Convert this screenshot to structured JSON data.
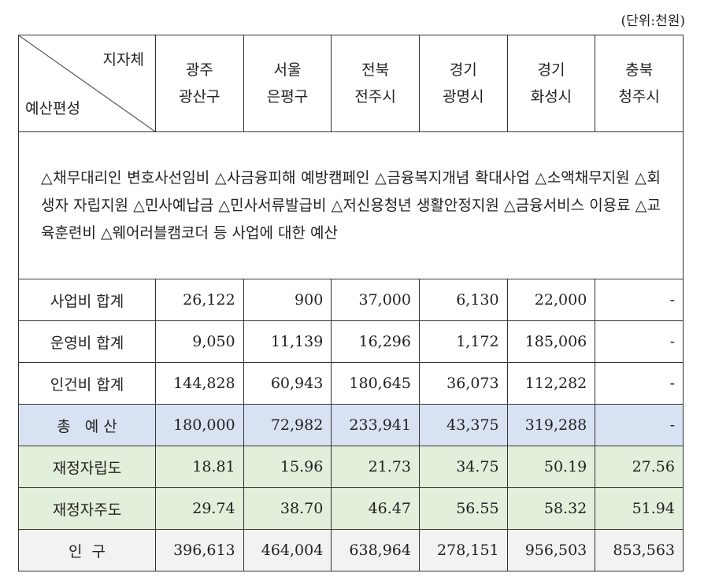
{
  "unit": "(단위:천원)",
  "corner": {
    "top": "지자체",
    "bottom": "예산편성"
  },
  "columns": [
    {
      "line1": "광주",
      "line2": "광산구"
    },
    {
      "line1": "서울",
      "line2": "은평구"
    },
    {
      "line1": "전북",
      "line2": "전주시"
    },
    {
      "line1": "경기",
      "line2": "광명시"
    },
    {
      "line1": "경기",
      "line2": "화성시"
    },
    {
      "line1": "충북",
      "line2": "청주시"
    }
  ],
  "description": "△채무대리인 변호사선임비 △사금융피해 예방캠페인 △금융복지개념 확대사업 △소액채무지원 △회생자 자립지원 △민사예납금 △민사서류발급비 △저신용청년 생활안정지원 △금융서비스 이용료 △교육훈련비 △웨어러블캠코더 등 사업에 대한 예산",
  "rows": [
    {
      "label": "사업비 합계",
      "values": [
        "26,122",
        "900",
        "37,000",
        "6,130",
        "22,000",
        "-"
      ]
    },
    {
      "label": "운영비 합계",
      "values": [
        "9,050",
        "11,139",
        "16,296",
        "1,172",
        "185,006",
        "-"
      ]
    },
    {
      "label": "인건비 합계",
      "values": [
        "144,828",
        "60,943",
        "180,645",
        "36,073",
        "112,282",
        "-"
      ]
    },
    {
      "label": "총   예 산",
      "values": [
        "180,000",
        "72,982",
        "233,941",
        "43,375",
        "319,288",
        "-"
      ]
    },
    {
      "label": "재정자립도",
      "values": [
        "18.81",
        "15.96",
        "21.73",
        "34.75",
        "50.19",
        "27.56"
      ]
    },
    {
      "label": "재정자주도",
      "values": [
        "29.74",
        "38.70",
        "46.47",
        "56.55",
        "58.32",
        "51.94"
      ]
    },
    {
      "label": "인  구",
      "values": [
        "396,613",
        "464,004",
        "638,964",
        "278,151",
        "956,503",
        "853,563"
      ]
    }
  ],
  "colors": {
    "total_row": "#d9e2f3",
    "ratio_rows": "#e2efda",
    "population_row": "#f2f2f2"
  }
}
